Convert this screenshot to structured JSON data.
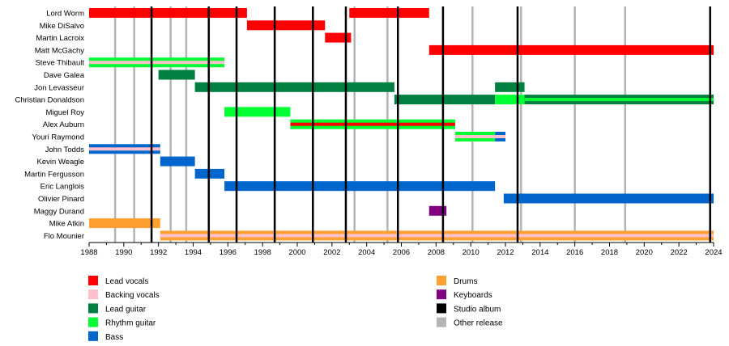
{
  "chart_data": {
    "type": "timeline",
    "title": "",
    "xlabel": "",
    "ylabel": "",
    "x_range": [
      1988,
      2024
    ],
    "x_ticks": [
      "1988",
      "1990",
      "1992",
      "1994",
      "1996",
      "1998",
      "2000",
      "2002",
      "2004",
      "2006",
      "2008",
      "2010",
      "2012",
      "2014",
      "2016",
      "2018",
      "2020",
      "2022",
      "2024"
    ],
    "grid": false,
    "legend_placement": "bottom",
    "colors": {
      "lead_vocals": "#ff0000",
      "backing_vocals": "#ffc0cb",
      "lead_guitar": "#008040",
      "rhythm_guitar": "#00ff33",
      "bass": "#0066cc",
      "drums": "#ffa033",
      "keyboards": "#800080",
      "studio_album": "#000000",
      "other_release": "#b4b4b4"
    },
    "members": [
      {
        "name": "Lord Worm",
        "periods": [
          {
            "start": 1988,
            "end": 1997.1,
            "role": "lead_vocals"
          },
          {
            "start": 2003,
            "end": 2007.6,
            "role": "lead_vocals"
          }
        ]
      },
      {
        "name": "Mike DiSalvo",
        "periods": [
          {
            "start": 1997.1,
            "end": 2001.6,
            "role": "lead_vocals"
          }
        ]
      },
      {
        "name": "Martin Lacroix",
        "periods": [
          {
            "start": 2001.6,
            "end": 2003.1,
            "role": "lead_vocals"
          }
        ]
      },
      {
        "name": "Matt McGachy",
        "periods": [
          {
            "start": 2007.6,
            "end": 2024,
            "role": "lead_vocals"
          }
        ]
      },
      {
        "name": "Steve Thibault",
        "periods": [
          {
            "start": 1988,
            "end": 1995.8,
            "role": "rhythm_guitar",
            "secondary": "backing_vocals"
          }
        ]
      },
      {
        "name": "Dave Galea",
        "periods": [
          {
            "start": 1992,
            "end": 1994.1,
            "role": "lead_guitar"
          }
        ]
      },
      {
        "name": "Jon Levasseur",
        "periods": [
          {
            "start": 1994.1,
            "end": 2005.6,
            "role": "lead_guitar"
          },
          {
            "start": 2011.4,
            "end": 2013.1,
            "role": "lead_guitar"
          }
        ]
      },
      {
        "name": "Christian Donaldson",
        "periods": [
          {
            "start": 2005.6,
            "end": 2011.4,
            "role": "lead_guitar"
          },
          {
            "start": 2011.4,
            "end": 2013.1,
            "role": "rhythm_guitar"
          },
          {
            "start": 2013.1,
            "end": 2024,
            "role": "lead_guitar",
            "secondary": "rhythm_guitar"
          }
        ]
      },
      {
        "name": "Miguel Roy",
        "periods": [
          {
            "start": 1995.8,
            "end": 1999.6,
            "role": "rhythm_guitar"
          }
        ]
      },
      {
        "name": "Alex Auburn",
        "periods": [
          {
            "start": 1999.6,
            "end": 2009.1,
            "role": "rhythm_guitar",
            "secondary": "lead_vocals"
          }
        ]
      },
      {
        "name": "Youri Raymond",
        "periods": [
          {
            "start": 2009.1,
            "end": 2011.4,
            "role": "rhythm_guitar",
            "secondary": "backing_vocals"
          },
          {
            "start": 2011.4,
            "end": 2012,
            "role": "bass",
            "secondary": "backing_vocals"
          }
        ]
      },
      {
        "name": "John Todds",
        "periods": [
          {
            "start": 1988,
            "end": 1992.1,
            "role": "bass",
            "secondary": "backing_vocals"
          }
        ]
      },
      {
        "name": "Kevin Weagle",
        "periods": [
          {
            "start": 1992.1,
            "end": 1994.1,
            "role": "bass"
          }
        ]
      },
      {
        "name": "Martin Fergusson",
        "periods": [
          {
            "start": 1994.1,
            "end": 1995.8,
            "role": "bass"
          }
        ]
      },
      {
        "name": "Eric Langlois",
        "periods": [
          {
            "start": 1995.8,
            "end": 2011.4,
            "role": "bass"
          }
        ]
      },
      {
        "name": "Olivier Pinard",
        "periods": [
          {
            "start": 2011.9,
            "end": 2024,
            "role": "bass"
          }
        ]
      },
      {
        "name": "Maggy Durand",
        "periods": [
          {
            "start": 2007.6,
            "end": 2008.6,
            "role": "keyboards"
          }
        ]
      },
      {
        "name": "Mike Atkin",
        "periods": [
          {
            "start": 1988,
            "end": 1992.1,
            "role": "drums"
          }
        ]
      },
      {
        "name": "Flo Mounier",
        "periods": [
          {
            "start": 1992.1,
            "end": 2024,
            "role": "drums",
            "secondary": "backing_vocals"
          }
        ]
      }
    ],
    "studio_albums": [
      1991.6,
      1994.9,
      1996.5,
      1998.7,
      2000.9,
      2002.8,
      2005.8,
      2008.4,
      2012.7,
      2023.8
    ],
    "other_releases": [
      1989.5,
      1990.6,
      1992.7,
      1993.6,
      2003.3,
      2005.2,
      2010.1,
      2012.9,
      2016,
      2018.9
    ],
    "legend": [
      {
        "key": "lead_vocals",
        "label": "Lead vocals"
      },
      {
        "key": "backing_vocals",
        "label": "Backing vocals"
      },
      {
        "key": "lead_guitar",
        "label": "Lead guitar"
      },
      {
        "key": "rhythm_guitar",
        "label": "Rhythm guitar"
      },
      {
        "key": "bass",
        "label": "Bass"
      },
      {
        "key": "drums",
        "label": "Drums"
      },
      {
        "key": "keyboards",
        "label": "Keyboards"
      },
      {
        "key": "studio_album",
        "label": "Studio album"
      },
      {
        "key": "other_release",
        "label": "Other release"
      }
    ]
  }
}
